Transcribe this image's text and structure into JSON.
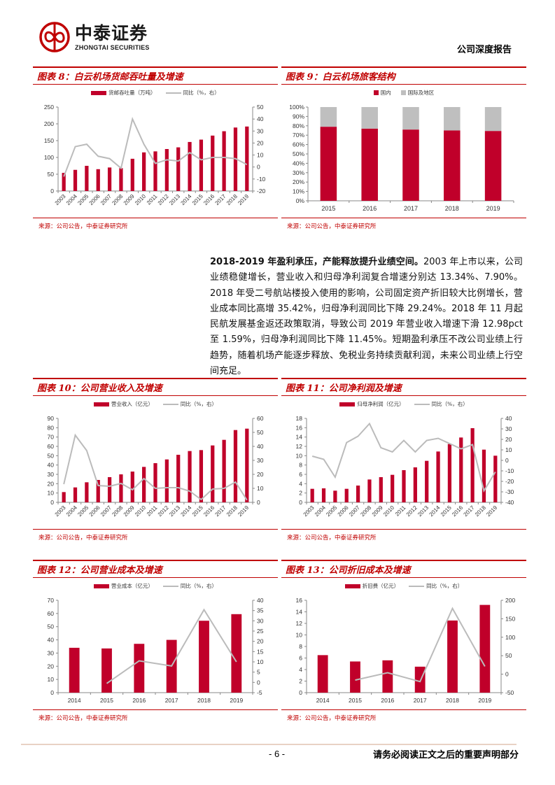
{
  "header": {
    "logo_cn": "中泰证券",
    "logo_en": "ZHONGTAI SECURITIES",
    "doc_type": "公司深度报告",
    "brand_color": "#c00000"
  },
  "colors": {
    "bar": "#c0002a",
    "line": "#bbbbbb",
    "secondary_bar": "#bfbfbf",
    "axis": "#888888",
    "title_red": "#c00000"
  },
  "source_text": "来源：公司公告，中泰证券研究所",
  "body": {
    "lead": "2018-2019 年盈利承压，产能释放提升业绩空间。",
    "text": "2003 年上市以来，公司业绩稳健增长，营业收入和归母净利润复合增速分别达 13.34%、7.90%。2018 年受二号航站楼投入使用的影响，公司固定资产折旧较大比例增长，营业成本同比高增 35.42%，归母净利润同比下降 29.24%。2018 年 11 月起民航发展基金返还政策取消，导致公司 2019 年营业收入增速下滑 12.98pct 至 1.59%，归母净利润同比下降 11.45%。短期盈利承压不改公司业绩上行趋势，随着机场产能逐步释放、免税业务持续贡献利润，未来公司业绩上行空间充足。"
  },
  "footer": {
    "page": "- 6 -",
    "disclaimer": "请务必阅读正文之后的重要声明部分"
  },
  "chart_data": [
    {
      "id": "fig8",
      "title": "图表 8：白云机场货邮吞吐量及增速",
      "type": "bar+line",
      "categories": [
        "2003",
        "2004",
        "2005",
        "2006",
        "2007",
        "2008",
        "2009",
        "2010",
        "2011",
        "2012",
        "2013",
        "2014",
        "2015",
        "2016",
        "2017",
        "2018",
        "2019"
      ],
      "series": [
        {
          "name": "货邮吞吐量（万吨）",
          "axis": "left",
          "type": "bar",
          "values": [
            54,
            63,
            75,
            65,
            70,
            68,
            96,
            115,
            118,
            125,
            130,
            146,
            153,
            165,
            178,
            189,
            192
          ]
        },
        {
          "name": "同比（%，右）",
          "axis": "right",
          "type": "line",
          "values": [
            -8,
            17,
            19,
            9,
            7,
            -1,
            40,
            19,
            3,
            6,
            5,
            12,
            6,
            8,
            8,
            7,
            2
          ]
        }
      ],
      "ylim_left": [
        0,
        250
      ],
      "yticks_left": [
        0,
        50,
        100,
        150,
        200,
        250
      ],
      "ylim_right": [
        -20,
        50
      ],
      "yticks_right": [
        -20,
        -10,
        0,
        10,
        20,
        30,
        40,
        50
      ],
      "rotate_x": true
    },
    {
      "id": "fig9",
      "title": "图表 9：白云机场旅客结构",
      "type": "stacked_bar_pct",
      "categories": [
        "2015",
        "2016",
        "2017",
        "2018",
        "2019"
      ],
      "series": [
        {
          "name": "国内",
          "values": [
            79,
            77,
            76,
            75,
            74.5
          ],
          "color": "#c0002a"
        },
        {
          "name": "国际及地区",
          "values": [
            21,
            23,
            24,
            25,
            25.5
          ],
          "color": "#bfbfbf"
        }
      ],
      "ylim": [
        0,
        100
      ],
      "yticks": [
        "0%",
        "10%",
        "20%",
        "30%",
        "40%",
        "50%",
        "60%",
        "70%",
        "80%",
        "90%",
        "100%"
      ]
    },
    {
      "id": "fig10",
      "title": "图表 10：公司营业收入及增速",
      "type": "bar+line",
      "categories": [
        "2003",
        "2004",
        "2005",
        "2006",
        "2007",
        "2008",
        "2009",
        "2010",
        "2011",
        "2012",
        "2013",
        "2014",
        "2015",
        "2016",
        "2017",
        "2018",
        "2019"
      ],
      "series": [
        {
          "name": "营业收入（亿元）",
          "axis": "left",
          "type": "bar",
          "values": [
            11,
            16,
            21.5,
            24,
            27,
            30,
            33,
            38,
            42,
            46,
            51,
            55,
            56,
            61,
            67,
            77.5,
            79
          ]
        },
        {
          "name": "同比（%，右）",
          "axis": "right",
          "type": "line",
          "values": [
            13,
            48,
            37,
            12,
            11.5,
            13.5,
            9,
            17,
            10,
            10.5,
            10.5,
            8,
            2,
            9.5,
            10,
            14.5,
            1.6
          ]
        }
      ],
      "ylim_left": [
        0,
        90
      ],
      "yticks_left": [
        0,
        10,
        20,
        30,
        40,
        50,
        60,
        70,
        80,
        90
      ],
      "ylim_right": [
        0,
        60
      ],
      "yticks_right": [
        0,
        10,
        20,
        30,
        40,
        50,
        60
      ],
      "rotate_x": true
    },
    {
      "id": "fig11",
      "title": "图表 11：公司净利润及增速",
      "type": "bar+line",
      "categories": [
        "2003",
        "2004",
        "2005",
        "2006",
        "2007",
        "2008",
        "2009",
        "2010",
        "2011",
        "2012",
        "2013",
        "2014",
        "2015",
        "2016",
        "2017",
        "2018",
        "2019"
      ],
      "series": [
        {
          "name": "归母净利润（亿元）",
          "axis": "left",
          "type": "bar",
          "values": [
            2.9,
            3.0,
            2.5,
            2.9,
            3.6,
            4.9,
            5.4,
            5.9,
            6.9,
            7.5,
            8.9,
            10.9,
            12.5,
            13.9,
            15.9,
            11.3,
            10.0
          ]
        },
        {
          "name": "同比（%，右）",
          "axis": "right",
          "type": "line",
          "values": [
            4,
            1,
            -16,
            17,
            23,
            35,
            12,
            8,
            19,
            8,
            19,
            21,
            16,
            11,
            15,
            -29,
            -11
          ]
        }
      ],
      "ylim_left": [
        0,
        18
      ],
      "yticks_left": [
        0,
        2,
        4,
        6,
        8,
        10,
        12,
        14,
        16,
        18
      ],
      "ylim_right": [
        -40,
        40
      ],
      "yticks_right": [
        -40,
        -30,
        -20,
        -10,
        0,
        10,
        20,
        30,
        40
      ],
      "rotate_x": true
    },
    {
      "id": "fig12",
      "title": "图表 12：公司营业成本及增速",
      "type": "bar+line",
      "categories": [
        "2014",
        "2015",
        "2016",
        "2017",
        "2018",
        "2019"
      ],
      "series": [
        {
          "name": "营业成本（亿元）",
          "axis": "left",
          "type": "bar",
          "values": [
            34,
            33.5,
            37,
            40,
            54.5,
            59.5
          ]
        },
        {
          "name": "同比（%，右）",
          "axis": "right",
          "type": "line",
          "values": [
            null,
            -0.5,
            10.5,
            8,
            35.4,
            10
          ]
        }
      ],
      "ylim_left": [
        0,
        70
      ],
      "yticks_left": [
        0,
        10,
        20,
        30,
        40,
        50,
        60,
        70
      ],
      "ylim_right": [
        -5,
        40
      ],
      "yticks_right": [
        -5,
        0,
        5,
        10,
        15,
        20,
        25,
        30,
        35,
        40
      ],
      "rotate_x": false
    },
    {
      "id": "fig13",
      "title": "图表 13：公司折旧成本及增速",
      "type": "bar+line",
      "categories": [
        "2014",
        "2015",
        "2016",
        "2017",
        "2018",
        "2019"
      ],
      "series": [
        {
          "name": "折旧费（亿元）",
          "axis": "left",
          "type": "bar",
          "values": [
            6.5,
            5.4,
            5.6,
            4.5,
            12.5,
            15.2
          ]
        },
        {
          "name": "同比（%，右）",
          "axis": "right",
          "type": "line",
          "values": [
            null,
            -16,
            4,
            -20,
            178,
            21
          ]
        }
      ],
      "ylim_left": [
        0,
        16
      ],
      "yticks_left": [
        0,
        2,
        4,
        6,
        8,
        10,
        12,
        14,
        16
      ],
      "ylim_right": [
        -50,
        200
      ],
      "yticks_right": [
        -50,
        0,
        50,
        100,
        150,
        200
      ],
      "rotate_x": false
    }
  ]
}
